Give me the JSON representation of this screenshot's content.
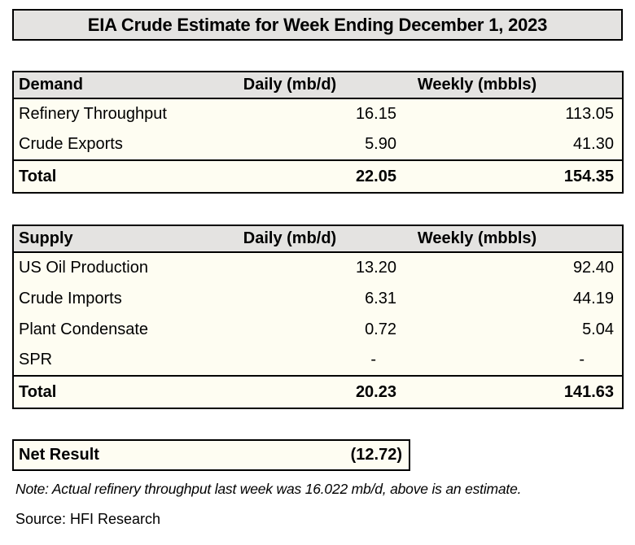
{
  "page": {
    "title": "EIA Crude Estimate for Week Ending December 1, 2023",
    "note": "Note: Actual refinery throughput last week was 16.022 mb/d, above is an estimate.",
    "source": "Source: HFI Research"
  },
  "columns": {
    "daily": "Daily (mb/d)",
    "weekly": "Weekly (mbbls)"
  },
  "demand": {
    "header": "Demand",
    "rows": [
      {
        "label": "Refinery Throughput",
        "daily": "16.15",
        "weekly": "113.05"
      },
      {
        "label": "Crude Exports",
        "daily": "5.90",
        "weekly": "41.30"
      }
    ],
    "total": {
      "label": "Total",
      "daily": "22.05",
      "weekly": "154.35"
    }
  },
  "supply": {
    "header": "Supply",
    "rows": [
      {
        "label": "US Oil Production",
        "daily": "13.20",
        "weekly": "92.40"
      },
      {
        "label": "Crude Imports",
        "daily": "6.31",
        "weekly": "44.19"
      },
      {
        "label": "Plant Condensate",
        "daily": "0.72",
        "weekly": "5.04"
      },
      {
        "label": "SPR",
        "daily": "-",
        "weekly": "-"
      }
    ],
    "total": {
      "label": "Total",
      "daily": "20.23",
      "weekly": "141.63"
    }
  },
  "net_result": {
    "label": "Net Result",
    "value": "(12.72)"
  },
  "colors": {
    "header_bg": "#e4e3e1",
    "body_bg": "#fefdf2",
    "border": "#000000"
  }
}
